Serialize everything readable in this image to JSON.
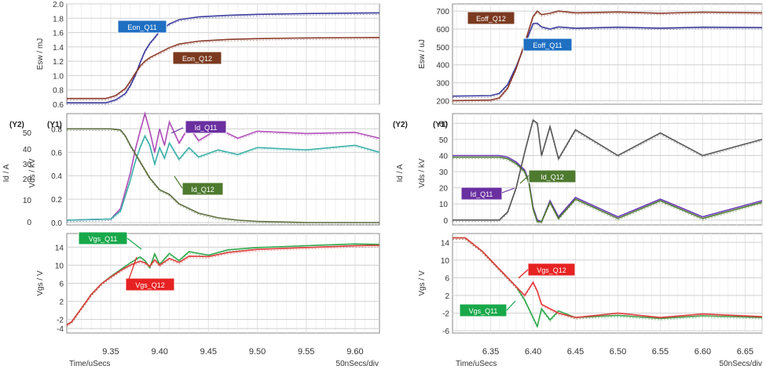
{
  "chart_data": [
    {
      "type": "line",
      "panel": "turn-on",
      "x_ticks": [
        "9.35",
        "9.40",
        "9.45",
        "9.50",
        "9.55",
        "9.60"
      ],
      "x_range": [
        9.305,
        9.625
      ],
      "xlabel": "Time/uSecs",
      "time_scale": "50nSecs/div",
      "subplots": [
        {
          "id": "esw",
          "ylabel": "Esw / mJ",
          "ylim": [
            0.6,
            2.0
          ],
          "y_ticks": [
            "0.6",
            "0.8",
            "1.0",
            "1.2",
            "1.4",
            "1.6",
            "1.8",
            "2.0"
          ],
          "series": [
            {
              "name": "Eon_Q11",
              "color": "#3c3c9c",
              "x": [
                9.305,
                9.345,
                9.355,
                9.365,
                9.37,
                9.375,
                9.38,
                9.385,
                9.39,
                9.395,
                9.4,
                9.41,
                9.42,
                9.44,
                9.47,
                9.5,
                9.55,
                9.6,
                9.625
              ],
              "y": [
                0.62,
                0.62,
                0.66,
                0.75,
                0.86,
                1.0,
                1.18,
                1.34,
                1.45,
                1.53,
                1.62,
                1.72,
                1.78,
                1.82,
                1.84,
                1.855,
                1.865,
                1.872,
                1.875
              ]
            },
            {
              "name": "Eon_Q12",
              "color": "#8b3a2a",
              "x": [
                9.305,
                9.345,
                9.355,
                9.365,
                9.37,
                9.375,
                9.38,
                9.385,
                9.39,
                9.4,
                9.41,
                9.42,
                9.44,
                9.47,
                9.5,
                9.55,
                9.6,
                9.625
              ],
              "y": [
                0.68,
                0.68,
                0.72,
                0.82,
                0.92,
                1.03,
                1.13,
                1.2,
                1.25,
                1.32,
                1.39,
                1.44,
                1.48,
                1.505,
                1.515,
                1.525,
                1.53,
                1.532
              ]
            }
          ]
        },
        {
          "id": "idvds",
          "ylabel_y1": "Vds / kV",
          "ylabel_y2": "Id / A",
          "axis_tag_y1": "(Y1)",
          "axis_tag_y2": "(Y2)",
          "ylim_y1": [
            -0.02,
            0.93
          ],
          "y1_ticks": [
            "0.0",
            "0.2",
            "0.4",
            "0.6",
            "0.8"
          ],
          "y2_ticks": [
            "0",
            "10",
            "20",
            "30",
            "40",
            "50"
          ],
          "series": [
            {
              "name": "Id_Q11",
              "color": "#b04fb8",
              "axis": "Y2",
              "x": [
                9.305,
                9.35,
                9.36,
                9.37,
                9.375,
                9.38,
                9.385,
                9.39,
                9.395,
                9.4,
                9.405,
                9.41,
                9.42,
                9.43,
                9.44,
                9.46,
                9.48,
                9.5,
                9.55,
                9.6,
                9.625
              ],
              "y": [
                0.02,
                0.03,
                0.12,
                0.42,
                0.62,
                0.78,
                0.93,
                0.78,
                0.6,
                0.8,
                0.66,
                0.86,
                0.68,
                0.82,
                0.7,
                0.8,
                0.72,
                0.78,
                0.76,
                0.77,
                0.72
              ]
            },
            {
              "name": "Id_Q12",
              "color": "#3ab0a8",
              "axis": "Y2",
              "x": [
                9.305,
                9.35,
                9.36,
                9.37,
                9.375,
                9.38,
                9.385,
                9.39,
                9.395,
                9.4,
                9.405,
                9.41,
                9.42,
                9.43,
                9.44,
                9.46,
                9.48,
                9.5,
                9.55,
                9.6,
                9.625
              ],
              "y": [
                0.02,
                0.03,
                0.1,
                0.36,
                0.52,
                0.64,
                0.74,
                0.66,
                0.5,
                0.64,
                0.55,
                0.68,
                0.54,
                0.64,
                0.56,
                0.62,
                0.58,
                0.64,
                0.62,
                0.66,
                0.6
              ]
            },
            {
              "name": "Vds",
              "color": "#5a6a3a",
              "axis": "Y1",
              "x": [
                9.305,
                9.35,
                9.36,
                9.365,
                9.37,
                9.38,
                9.39,
                9.4,
                9.41,
                9.42,
                9.44,
                9.46,
                9.48,
                9.5,
                9.55,
                9.625
              ],
              "y": [
                0.8,
                0.8,
                0.79,
                0.74,
                0.66,
                0.52,
                0.38,
                0.28,
                0.24,
                0.16,
                0.08,
                0.04,
                0.02,
                0.01,
                0.0,
                0.0
              ]
            }
          ]
        },
        {
          "id": "vgs",
          "ylabel": "Vgs / V",
          "ylim": [
            -5,
            17
          ],
          "y_ticks": [
            "-4",
            "-2",
            "2",
            "6",
            "10",
            "14"
          ],
          "series": [
            {
              "name": "Vgs_Q11",
              "color": "#2da84a",
              "x": [
                9.305,
                9.31,
                9.32,
                9.33,
                9.34,
                9.35,
                9.36,
                9.37,
                9.38,
                9.385,
                9.39,
                9.395,
                9.4,
                9.41,
                9.42,
                9.43,
                9.45,
                9.47,
                9.5,
                9.55,
                9.6,
                9.625
              ],
              "y": [
                -3.2,
                -2.5,
                0.5,
                3.5,
                5.8,
                7.5,
                9.0,
                10.5,
                11.8,
                11.0,
                9.5,
                12.5,
                10.2,
                12.6,
                11.0,
                13.0,
                12.2,
                13.4,
                13.9,
                14.3,
                14.7,
                14.6
              ]
            },
            {
              "name": "Vgs_Q12",
              "color": "#e03a3a",
              "x": [
                9.305,
                9.31,
                9.32,
                9.33,
                9.34,
                9.35,
                9.36,
                9.37,
                9.38,
                9.385,
                9.39,
                9.395,
                9.4,
                9.41,
                9.42,
                9.43,
                9.45,
                9.47,
                9.5,
                9.55,
                9.6,
                9.625
              ],
              "y": [
                -3.2,
                -2.5,
                0.5,
                3.5,
                5.8,
                7.4,
                8.8,
                10.0,
                10.9,
                10.5,
                9.8,
                11.2,
                10.0,
                11.5,
                10.6,
                12.0,
                11.9,
                12.8,
                13.5,
                13.9,
                14.3,
                14.4
              ]
            }
          ]
        }
      ],
      "annotations": [
        {
          "text": "Eon_Q11",
          "bg": "#1f6fc2"
        },
        {
          "text": "Eon_Q12",
          "bg": "#7b3a20"
        },
        {
          "text": "Id_Q11",
          "bg": "#6a2fa0"
        },
        {
          "text": "Id_Q12",
          "bg": "#4e7a2f"
        },
        {
          "text": "Vgs_Q11",
          "bg": "#18a84a"
        },
        {
          "text": "Vgs_Q12",
          "bg": "#e62222"
        }
      ]
    },
    {
      "type": "line",
      "panel": "turn-off",
      "x_ticks": [
        "6.35",
        "6.40",
        "6.45",
        "6.50",
        "6.55",
        "6.60",
        "6.65"
      ],
      "x_range": [
        6.305,
        6.67
      ],
      "xlabel": "Time/uSecs",
      "time_scale": "50nSecs/div",
      "subplots": [
        {
          "id": "esw",
          "ylabel": "Esw / uJ",
          "ylim": [
            180,
            740
          ],
          "y_ticks": [
            "200",
            "300",
            "400",
            "500",
            "600",
            "700"
          ],
          "series": [
            {
              "name": "Eoff_Q11",
              "color": "#3c3c9c",
              "x": [
                6.305,
                6.35,
                6.36,
                6.37,
                6.38,
                6.39,
                6.4,
                6.405,
                6.41,
                6.42,
                6.43,
                6.45,
                6.5,
                6.55,
                6.6,
                6.67
              ],
              "y": [
                225,
                228,
                240,
                290,
                390,
                510,
                630,
                632,
                612,
                600,
                612,
                604,
                610,
                605,
                610,
                608
              ]
            },
            {
              "name": "Eoff_Q12",
              "color": "#8b3a2a",
              "x": [
                6.305,
                6.35,
                6.36,
                6.37,
                6.38,
                6.39,
                6.4,
                6.405,
                6.41,
                6.42,
                6.43,
                6.45,
                6.5,
                6.55,
                6.6,
                6.67
              ],
              "y": [
                200,
                203,
                215,
                270,
                380,
                520,
                670,
                700,
                680,
                688,
                700,
                690,
                695,
                688,
                694,
                690
              ]
            }
          ]
        },
        {
          "id": "idvds",
          "ylabel_y1": "Vds / kV",
          "ylabel_y2": "Id / A",
          "axis_tag_y1": "(Y1)",
          "axis_tag_y2": "(Y2)",
          "ylim_y2": [
            -3,
            66
          ],
          "y2_ticks": [
            "0",
            "10",
            "20",
            "30",
            "40",
            "50",
            "60"
          ],
          "series": [
            {
              "name": "Id_Q11",
              "color": "#6a3ab8",
              "axis": "Y2",
              "x": [
                6.305,
                6.36,
                6.37,
                6.38,
                6.39,
                6.395,
                6.4,
                6.405,
                6.41,
                6.42,
                6.43,
                6.45,
                6.5,
                6.55,
                6.6,
                6.67
              ],
              "y": [
                40,
                40,
                39,
                36,
                31,
                24,
                8,
                0,
                -1,
                12,
                2,
                14,
                2,
                13,
                2,
                12
              ]
            },
            {
              "name": "Id_Q12",
              "color": "#4e7a2f",
              "axis": "Y2",
              "x": [
                6.305,
                6.36,
                6.37,
                6.38,
                6.39,
                6.395,
                6.4,
                6.405,
                6.41,
                6.42,
                6.43,
                6.45,
                6.5,
                6.55,
                6.6,
                6.67
              ],
              "y": [
                39,
                39,
                38,
                35,
                30,
                23,
                7,
                -1,
                -1,
                11,
                1,
                13,
                1,
                12,
                1,
                11
              ]
            },
            {
              "name": "Vds",
              "color": "#555555",
              "axis": "Y1",
              "x": [
                6.305,
                6.36,
                6.37,
                6.38,
                6.39,
                6.4,
                6.405,
                6.41,
                6.42,
                6.43,
                6.45,
                6.5,
                6.55,
                6.6,
                6.67
              ],
              "y": [
                0,
                0,
                5,
                20,
                42,
                62,
                60,
                40,
                58,
                38,
                56,
                40,
                54,
                40,
                50
              ]
            }
          ]
        },
        {
          "id": "vgs",
          "ylabel": "Vgs / V",
          "ylim": [
            -6.5,
            16
          ],
          "y_ticks": [
            "-6",
            "-2",
            "2",
            "6",
            "10",
            "14"
          ],
          "series": [
            {
              "name": "Vgs_Q11",
              "color": "#2da84a",
              "x": [
                6.305,
                6.32,
                6.34,
                6.36,
                6.38,
                6.39,
                6.4,
                6.405,
                6.41,
                6.42,
                6.43,
                6.45,
                6.5,
                6.55,
                6.6,
                6.67
              ],
              "y": [
                15,
                15,
                12,
                8,
                4,
                1,
                -3,
                -5,
                -1,
                -3.5,
                -1.5,
                -3,
                -2.5,
                -3.2,
                -2.6,
                -3
              ]
            },
            {
              "name": "Vgs_Q12",
              "color": "#e03a3a",
              "x": [
                6.305,
                6.32,
                6.34,
                6.36,
                6.38,
                6.39,
                6.4,
                6.405,
                6.41,
                6.42,
                6.43,
                6.45,
                6.5,
                6.55,
                6.6,
                6.67
              ],
              "y": [
                15,
                15,
                12,
                8,
                4,
                2,
                5,
                3,
                0,
                -1,
                -2,
                -3,
                -2,
                -3,
                -2.2,
                -2.8
              ]
            }
          ]
        }
      ],
      "annotations": [
        {
          "text": "Eoff_Q12",
          "bg": "#7b3a20"
        },
        {
          "text": "Eoff_Q11",
          "bg": "#1f6fc2"
        },
        {
          "text": "Id_Q12",
          "bg": "#4e7a2f"
        },
        {
          "text": "Id_Q11",
          "bg": "#6a2fa0"
        },
        {
          "text": "Vgs_Q12",
          "bg": "#e62222"
        },
        {
          "text": "Vgs_Q11",
          "bg": "#18a84a"
        }
      ]
    }
  ]
}
